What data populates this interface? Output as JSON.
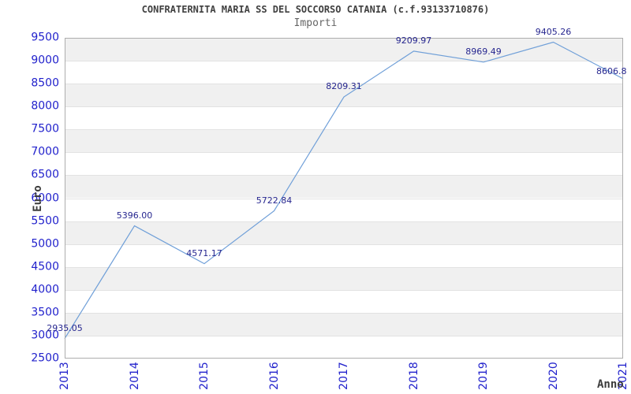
{
  "title": "CONFRATERNITA MARIA SS DEL SOCCORSO CATANIA (c.f.93133710876)",
  "subtitle": "Importi",
  "chart_data": {
    "type": "line",
    "x": [
      "2013",
      "2014",
      "2015",
      "2016",
      "2017",
      "2018",
      "2019",
      "2020",
      "2021"
    ],
    "values": [
      2935.05,
      5396.0,
      4571.17,
      5722.84,
      8209.31,
      9209.97,
      8969.49,
      9405.26,
      8606.8
    ],
    "point_labels": [
      "2935.05",
      "5396.00",
      "4571.17",
      "5722.84",
      "8209.31",
      "9209.97",
      "8969.49",
      "9405.26",
      "8606.8"
    ],
    "title": "CONFRATERNITA MARIA SS DEL SOCCORSO CATANIA (c.f.93133710876)",
    "subtitle": "Importi",
    "xlabel": "Anno",
    "ylabel": "Euro",
    "ylim": [
      2500,
      9500
    ],
    "ytick_step": 500,
    "y_ticks": [
      2500,
      3000,
      3500,
      4000,
      4500,
      5000,
      5500,
      6000,
      6500,
      7000,
      7500,
      8000,
      8500,
      9000,
      9500
    ],
    "grid": "horizontal, alternating shaded bands",
    "legend_position": "none",
    "colors": {
      "line": "#6f9fd8",
      "tick_label": "#2222cc",
      "point_label": "#26268f",
      "band_gray": "#f0f0f0",
      "band_white": "#ffffff",
      "gridline": "#e2e2e2",
      "plot_border": "#adadad",
      "title": "#404040",
      "subtitle": "#666666",
      "axis_title": "#3c3c3c"
    }
  }
}
